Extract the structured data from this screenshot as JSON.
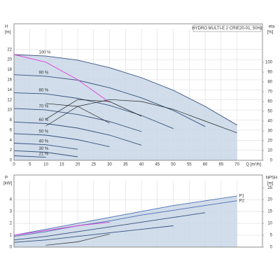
{
  "chart_data": [
    {
      "type": "line",
      "title": "HYDRO MULTI-E 2 CRIE20-01, 50Hz",
      "ylabel": "H",
      "yunit": "[m]",
      "y2label": "eta",
      "y2unit": "[%]",
      "xlabel": "Q [m³/h]",
      "x": [
        0,
        10,
        20,
        30,
        40,
        50,
        60,
        70
      ],
      "xlim": [
        0,
        78
      ],
      "xticks": [
        0,
        5,
        10,
        15,
        20,
        25,
        30,
        35,
        40,
        45,
        50,
        55,
        60,
        65,
        70
      ],
      "ylim": [
        0,
        26
      ],
      "yticks": [
        0,
        2,
        4,
        6,
        8,
        10,
        12,
        14,
        16,
        18,
        20,
        22
      ],
      "y2lim": [
        0,
        133.6
      ],
      "y2ticks": [
        0,
        10,
        20,
        30,
        40,
        50,
        60,
        70,
        80,
        90,
        100
      ],
      "grid": true,
      "series": [
        {
          "name": "100 %",
          "color": "#34507e",
          "area": true,
          "values": [
            21,
            20.7,
            19.9,
            18.4,
            16.4,
            13.9,
            10.7,
            7.0
          ]
        },
        {
          "name": "90 %",
          "color": "#34507e",
          "values": [
            17.0,
            16.7,
            15.9,
            14.4,
            12.4,
            9.9,
            6.7,
            null
          ]
        },
        {
          "name": "80 %",
          "color": "#34507e",
          "values": [
            13.4,
            13.2,
            12.3,
            10.9,
            8.9,
            6.3,
            null,
            null
          ]
        },
        {
          "name": "70 %",
          "color": "#34507e",
          "values": [
            10.3,
            10.0,
            9.1,
            7.7,
            5.7,
            null,
            null,
            null
          ]
        },
        {
          "name": "60 %",
          "color": "#34507e",
          "values": [
            7.6,
            7.3,
            6.4,
            5.0,
            3.0,
            null,
            null,
            null
          ]
        },
        {
          "name": "50 %",
          "color": "#34507e",
          "values": [
            5.3,
            5.0,
            4.1,
            2.7,
            null,
            null,
            null,
            null
          ]
        },
        {
          "name": "40 %",
          "color": "#34507e",
          "values": [
            3.4,
            3.1,
            2.2,
            null,
            null,
            null,
            null,
            null
          ]
        },
        {
          "name": "30 %",
          "color": "#34507e",
          "values": [
            1.9,
            1.6,
            0.7,
            null,
            null,
            null,
            null,
            null
          ]
        },
        {
          "name": "21 %",
          "color": "#34507e",
          "values": [
            0.9,
            0.6,
            null,
            null,
            null,
            null,
            null,
            null
          ]
        },
        {
          "color": "#e040d8",
          "values": [
            21,
            19.5,
            16,
            11.5,
            null,
            null,
            null,
            null
          ]
        },
        {
          "color": "#222222",
          "axis": "y2",
          "values": [
            null,
            35,
            55,
            62,
            60,
            52,
            40,
            28
          ]
        },
        {
          "color": "#222222",
          "axis": "y2",
          "values": [
            null,
            42,
            62,
            60,
            45,
            null,
            null,
            null
          ]
        },
        {
          "color": "#222222",
          "axis": "y2",
          "values": [
            null,
            58,
            55,
            38,
            null,
            null,
            null,
            null
          ]
        }
      ]
    },
    {
      "type": "line",
      "ylabel": "P",
      "yunit": "[kW]",
      "y2label": "NPSH",
      "y2unit": "[m]",
      "x": [
        0,
        10,
        20,
        30,
        40,
        50,
        60,
        70
      ],
      "xlim": [
        0,
        78
      ],
      "ylim": [
        0,
        5.6
      ],
      "yticks": [
        0,
        1,
        2,
        3,
        4
      ],
      "y2lim": [
        0,
        28
      ],
      "y2ticks": [
        0,
        5,
        10,
        15,
        20,
        25
      ],
      "grid": true,
      "series": [
        {
          "name": "P1",
          "color": "#4a6fb5",
          "area": true,
          "values": [
            1.0,
            1.5,
            2.0,
            2.5,
            3.0,
            3.5,
            3.9,
            4.3
          ]
        },
        {
          "name": "P2",
          "color": "#4a6fb5",
          "values": [
            0.9,
            1.3,
            1.8,
            2.2,
            2.7,
            3.1,
            3.5,
            3.9
          ]
        },
        {
          "color": "#34507e",
          "values": [
            0.6,
            0.9,
            1.3,
            1.7,
            2.1,
            2.5,
            2.9,
            null
          ]
        },
        {
          "color": "#34507e",
          "values": [
            0.4,
            0.6,
            0.9,
            1.2,
            1.5,
            1.8,
            null,
            null
          ]
        },
        {
          "color": "#e040d8",
          "values": [
            1.0,
            1.4,
            1.8,
            2.1,
            null,
            null,
            null,
            null
          ]
        },
        {
          "color": "#222222",
          "axis": "y2",
          "values": [
            null,
            0.8,
            2.2,
            5.5,
            null,
            null,
            null,
            null
          ]
        }
      ]
    }
  ]
}
